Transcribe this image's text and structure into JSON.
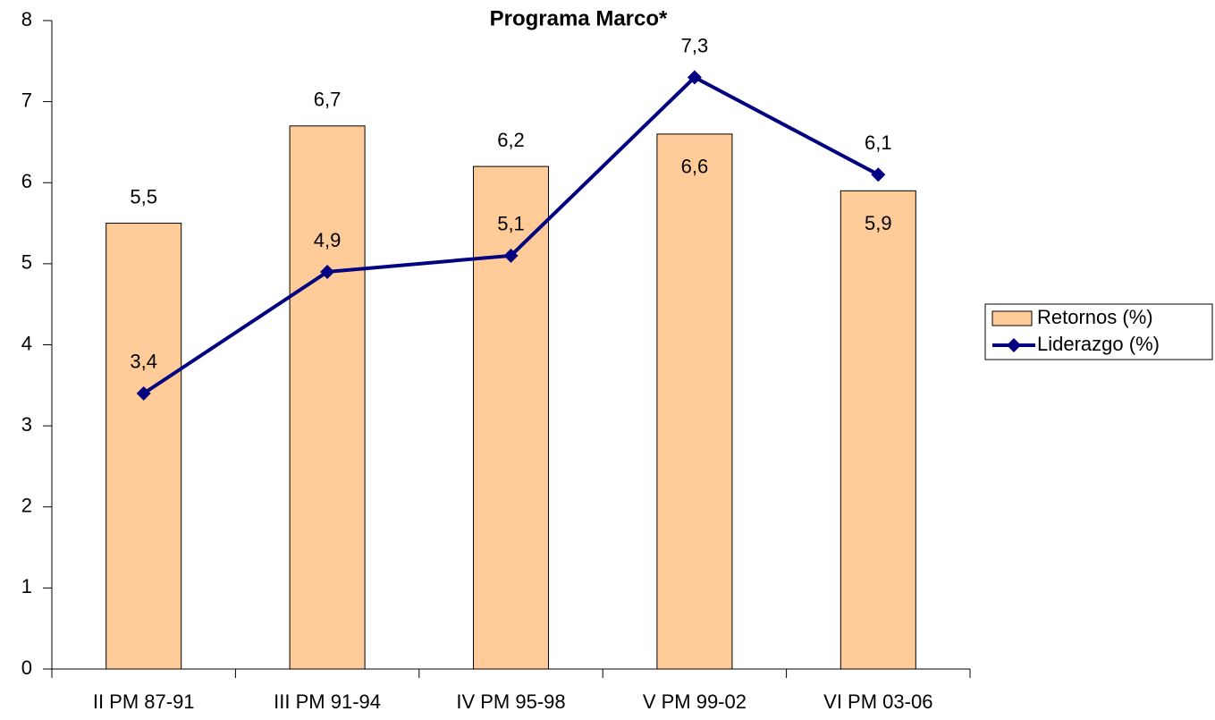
{
  "chart_data": {
    "type": "bar",
    "title": "Programa Marco*",
    "categories": [
      "II PM 87-91",
      "III PM 91-94",
      "IV PM 95-98",
      "V PM 99-02",
      "VI PM 03-06"
    ],
    "series": [
      {
        "name": "Retornos (%)",
        "type": "bar",
        "color": "#FFCC99",
        "values": [
          5.5,
          6.7,
          6.2,
          6.6,
          5.9
        ],
        "value_labels": [
          "5,5",
          "6,7",
          "6,2",
          "6,6",
          "5,9"
        ]
      },
      {
        "name": "Liderazgo (%)",
        "type": "line",
        "color": "#000080",
        "values": [
          3.4,
          4.9,
          5.1,
          7.3,
          6.1
        ],
        "value_labels": [
          "3,4",
          "4,9",
          "5,1",
          "7,3",
          "6,1"
        ]
      }
    ],
    "ylim": [
      0,
      8
    ],
    "yticks": [
      0,
      1,
      2,
      3,
      4,
      5,
      6,
      7,
      8
    ],
    "grid": false,
    "legend": "right"
  }
}
